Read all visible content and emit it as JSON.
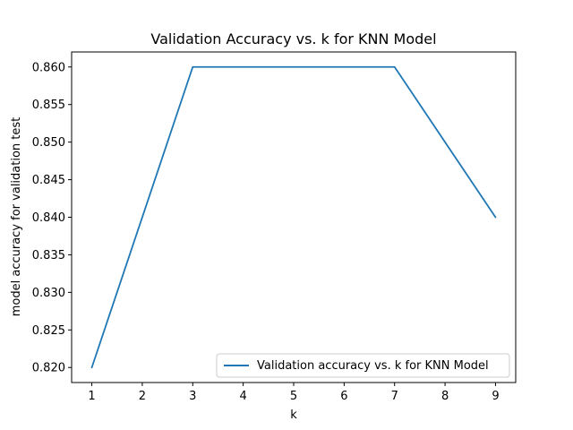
{
  "chart_data": {
    "type": "line",
    "title": "Validation Accuracy vs. k for KNN Model",
    "xlabel": "k",
    "ylabel": "model accuracy for validation test",
    "x": [
      1,
      3,
      5,
      7,
      9
    ],
    "series": [
      {
        "name": "Validation accuracy vs. k for KNN Model",
        "color": "#1f77b4",
        "values": [
          0.82,
          0.86,
          0.86,
          0.86,
          0.84
        ]
      }
    ],
    "xlim": [
      0.6,
      9.4
    ],
    "ylim": [
      0.818,
      0.862
    ],
    "xticks": [
      1,
      2,
      3,
      4,
      5,
      6,
      7,
      8,
      9
    ],
    "yticks": [
      "0.820",
      "0.825",
      "0.830",
      "0.835",
      "0.840",
      "0.845",
      "0.850",
      "0.855",
      "0.860"
    ],
    "grid": false,
    "legend_position": "lower-right"
  }
}
